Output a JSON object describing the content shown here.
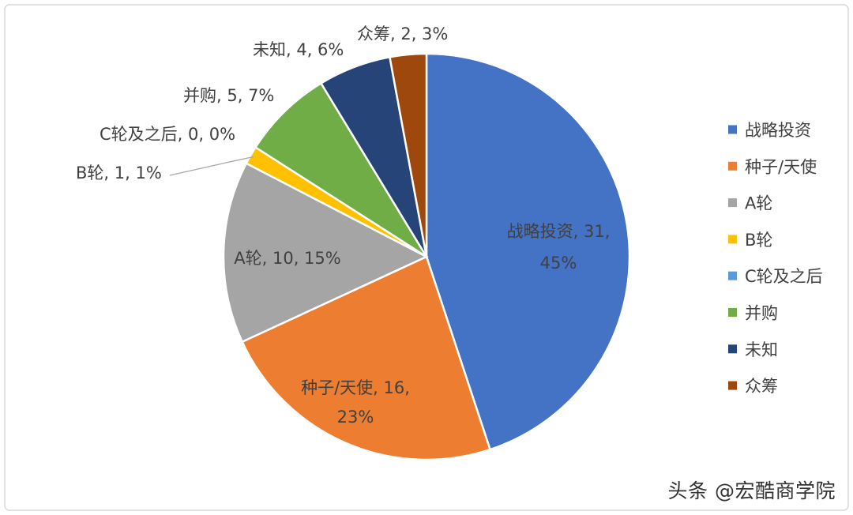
{
  "chart_data": {
    "type": "pie",
    "title": "",
    "start_angle_deg": 0,
    "direction": "clockwise",
    "legend_position": "right",
    "slices": [
      {
        "label": "战略投资",
        "value": 31,
        "percent": "45%",
        "color": "#4472C4",
        "data_label_line1": "战略投资, 31,",
        "data_label_line2": "45%"
      },
      {
        "label": "种子/天使",
        "value": 16,
        "percent": "23%",
        "color": "#ED7D31",
        "data_label_line1": "种子/天使, 16,",
        "data_label_line2": "23%"
      },
      {
        "label": "A轮",
        "value": 10,
        "percent": "15%",
        "color": "#A5A5A5",
        "data_label_line1": "A轮, 10, 15%",
        "data_label_line2": ""
      },
      {
        "label": "B轮",
        "value": 1,
        "percent": "1%",
        "color": "#FFC000",
        "data_label_line1": "B轮, 1, 1%",
        "data_label_line2": ""
      },
      {
        "label": "C轮及之后",
        "value": 0,
        "percent": "0%",
        "color": "#5B9BD5",
        "data_label_line1": "C轮及之后, 0, 0%",
        "data_label_line2": ""
      },
      {
        "label": "并购",
        "value": 5,
        "percent": "7%",
        "color": "#70AD47",
        "data_label_line1": "并购, 5, 7%",
        "data_label_line2": ""
      },
      {
        "label": "未知",
        "value": 4,
        "percent": "6%",
        "color": "#264478",
        "data_label_line1": "未知, 4, 6%",
        "data_label_line2": ""
      },
      {
        "label": "众筹",
        "value": 2,
        "percent": "3%",
        "color": "#9E480E",
        "data_label_line1": "众筹, 2, 3%",
        "data_label_line2": ""
      }
    ]
  },
  "watermark": "头条 @宏酷商学院"
}
